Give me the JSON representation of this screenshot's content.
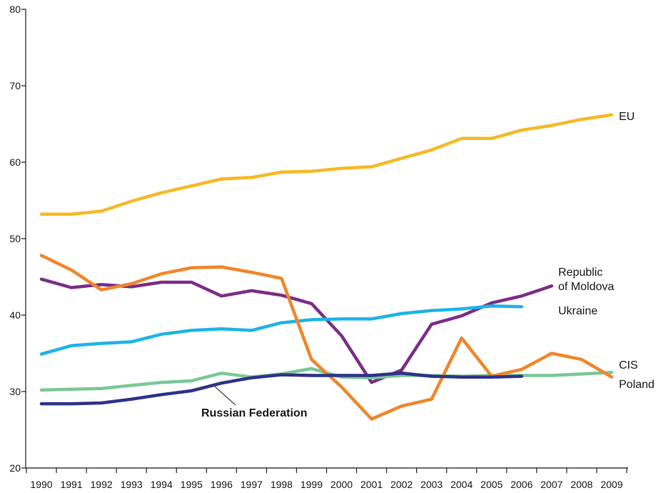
{
  "chart_data": {
    "type": "line",
    "title": "",
    "xlabel": "",
    "ylabel": "",
    "x": [
      1990,
      1991,
      1992,
      1993,
      1994,
      1995,
      1996,
      1997,
      1998,
      1999,
      2000,
      2001,
      2002,
      2003,
      2004,
      2005,
      2006,
      2007,
      2008,
      2009
    ],
    "x_tick_labels": [
      "1990",
      "1991",
      "1992",
      "1993",
      "1994",
      "1995",
      "1996",
      "1997",
      "1998",
      "1999",
      "2000",
      "2001",
      "2002",
      "2003",
      "2004",
      "2005",
      "2006",
      "2007",
      "2008",
      "2009"
    ],
    "ylim": [
      20,
      80
    ],
    "y_ticks": [
      20,
      30,
      40,
      50,
      60,
      70,
      80
    ],
    "y_tick_labels": [
      "20",
      "30",
      "40",
      "50",
      "60",
      "70",
      "80"
    ],
    "grid": false,
    "legend": "inline labels",
    "series": [
      {
        "name": "EU",
        "color": "#F6B926",
        "values": [
          53.2,
          53.2,
          53.6,
          54.9,
          56.0,
          56.9,
          57.8,
          58.0,
          58.7,
          58.8,
          59.2,
          59.4,
          60.5,
          61.6,
          63.1,
          63.1,
          64.2,
          64.8,
          65.6,
          66.2
        ]
      },
      {
        "name": "Republic of Moldova",
        "color": "#7B2E87",
        "values": [
          44.7,
          43.6,
          44.0,
          43.7,
          44.3,
          44.3,
          42.5,
          43.2,
          42.6,
          41.5,
          37.3,
          31.2,
          32.8,
          38.8,
          39.9,
          41.6,
          42.5,
          43.8,
          null,
          null
        ]
      },
      {
        "name": "Ukraine",
        "color": "#1EB4E6",
        "values": [
          34.9,
          36.0,
          36.3,
          36.5,
          37.5,
          38.0,
          38.2,
          38.0,
          39.0,
          39.4,
          39.5,
          39.5,
          40.2,
          40.6,
          40.8,
          41.2,
          41.1,
          null,
          null,
          null
        ]
      },
      {
        "name": "CIS",
        "color": "#7BC896",
        "values": [
          30.2,
          30.3,
          30.4,
          30.8,
          31.2,
          31.4,
          32.4,
          31.9,
          32.3,
          33.0,
          31.9,
          31.8,
          32.1,
          32.1,
          32.0,
          32.1,
          32.1,
          32.1,
          32.3,
          32.5
        ]
      },
      {
        "name": "Poland",
        "color": "#F0862B",
        "values": [
          47.8,
          45.9,
          43.3,
          44.1,
          45.4,
          46.2,
          46.3,
          45.6,
          44.8,
          34.2,
          30.6,
          26.4,
          28.1,
          29.0,
          37.0,
          32.0,
          32.9,
          35.0,
          34.2,
          31.9
        ]
      },
      {
        "name": "Russian Federation",
        "color": "#2E3389",
        "values": [
          28.4,
          28.4,
          28.5,
          29.0,
          29.6,
          30.1,
          31.1,
          31.8,
          32.2,
          32.1,
          32.1,
          32.1,
          32.4,
          32.0,
          31.9,
          31.9,
          32.0,
          null,
          null,
          null
        ]
      }
    ]
  }
}
